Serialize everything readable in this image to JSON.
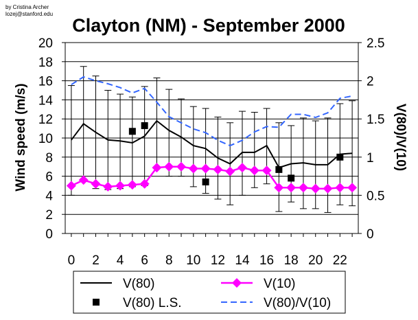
{
  "credit": {
    "line1": "by Cristina Archer",
    "line2": "lozej@stanford.edu"
  },
  "chart_data": {
    "type": "line",
    "title": "Clayton (NM) - September 2000",
    "xlabel": "",
    "ylabel": "Wind speed (m/s)",
    "y2label": "V(80)/V(10)",
    "x": [
      0,
      1,
      2,
      3,
      4,
      5,
      6,
      7,
      8,
      9,
      10,
      11,
      12,
      13,
      14,
      15,
      16,
      17,
      18,
      19,
      20,
      21,
      22,
      23
    ],
    "xticks": [
      "0",
      "2",
      "4",
      "6",
      "8",
      "10",
      "12",
      "14",
      "16",
      "18",
      "20",
      "22"
    ],
    "xlim": [
      -0.5,
      23.5
    ],
    "ylim": [
      0,
      20
    ],
    "yticks": [
      "0",
      "2",
      "4",
      "6",
      "8",
      "10",
      "12",
      "14",
      "16",
      "18",
      "20"
    ],
    "y2lim": [
      0,
      2.5
    ],
    "y2ticks": [
      "0",
      "0.5",
      "1",
      "1.5",
      "2",
      "2.5"
    ],
    "grid": true,
    "series": [
      {
        "name": "V(80)",
        "axis": "left",
        "color": "#000000",
        "style": "solid",
        "values": [
          9.8,
          11.5,
          10.6,
          9.8,
          9.7,
          9.5,
          10.2,
          11.8,
          10.8,
          10.1,
          9.2,
          8.9,
          7.9,
          7.3,
          8.5,
          8.5,
          9.2,
          6.9,
          7.3,
          7.4,
          7.2,
          7.2,
          8.3,
          8.4
        ],
        "error_low": [
          4.0,
          5.5,
          4.7,
          4.6,
          4.7,
          4.9,
          5.0,
          6.9,
          6.0,
          6.0,
          4.9,
          4.2,
          3.6,
          3.0,
          4.0,
          4.8,
          5.2,
          2.3,
          3.3,
          2.6,
          2.6,
          2.2,
          3.0,
          2.9
        ],
        "error_high": [
          15.5,
          17.5,
          16.5,
          15.0,
          14.6,
          14.3,
          15.4,
          16.3,
          15.1,
          14.1,
          13.3,
          13.1,
          12.2,
          11.6,
          12.8,
          12.7,
          13.1,
          11.6,
          11.3,
          12.1,
          11.8,
          12.1,
          13.6,
          13.9
        ]
      },
      {
        "name": "V(10)",
        "axis": "left",
        "color": "#ff00ff",
        "style": "solid",
        "marker": "diamond",
        "values": [
          5.0,
          5.6,
          5.2,
          4.9,
          5.0,
          5.1,
          5.2,
          6.9,
          7.0,
          7.0,
          6.8,
          6.8,
          6.7,
          6.5,
          6.9,
          6.6,
          6.6,
          4.8,
          4.8,
          4.8,
          4.7,
          4.7,
          4.8,
          4.8
        ]
      },
      {
        "name": "V(80) L.S.",
        "axis": "left",
        "color": "#000000",
        "style": "marker",
        "marker": "square",
        "points": [
          {
            "x": 5,
            "y": 10.7
          },
          {
            "x": 6,
            "y": 11.3
          },
          {
            "x": 11,
            "y": 5.4
          },
          {
            "x": 17,
            "y": 6.7
          },
          {
            "x": 18,
            "y": 5.8
          },
          {
            "x": 22,
            "y": 8.0
          }
        ]
      },
      {
        "name": "V(80)/V(10)",
        "axis": "right",
        "color": "#3366ff",
        "style": "dashed",
        "values": [
          1.95,
          2.05,
          2.0,
          1.96,
          1.91,
          1.84,
          1.9,
          1.72,
          1.53,
          1.45,
          1.37,
          1.32,
          1.22,
          1.15,
          1.22,
          1.33,
          1.4,
          1.39,
          1.56,
          1.56,
          1.52,
          1.58,
          1.77,
          1.8
        ]
      }
    ],
    "legend": {
      "position": "bottom",
      "entries": [
        "V(80)",
        "V(10)",
        "V(80) L.S.",
        "V(80)/V(10)"
      ]
    }
  }
}
